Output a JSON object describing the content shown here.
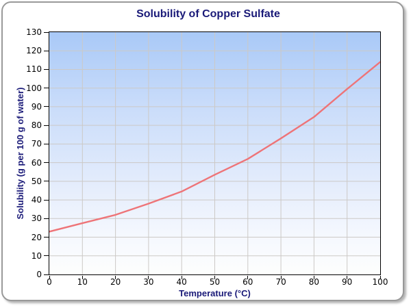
{
  "chart_data": {
    "type": "line",
    "title": "Solubility of Copper Sulfate",
    "xlabel": "Temperature (°C)",
    "ylabel": "Solubility (g per 100 g of water)",
    "x": [
      0,
      10,
      20,
      30,
      40,
      50,
      60,
      70,
      80,
      90,
      100
    ],
    "values": [
      23,
      27.5,
      32,
      38,
      44.5,
      53.5,
      62,
      73,
      84.5,
      99.5,
      114
    ],
    "xlim": [
      0,
      100
    ],
    "ylim": [
      0,
      130
    ],
    "x_ticks": [
      0,
      10,
      20,
      30,
      40,
      50,
      60,
      70,
      80,
      90,
      100
    ],
    "y_ticks": [
      0,
      10,
      20,
      30,
      40,
      50,
      60,
      70,
      80,
      90,
      100,
      110,
      120,
      130
    ],
    "grid": true,
    "legend_position": "none",
    "colors": {
      "line": "#ee7478",
      "title": "#1a1a78",
      "axis_titles": "#1a1a78",
      "tick_labels": "#000000",
      "grid": "#ccc9c6",
      "plot_border": "#000000",
      "card_border": "#999999",
      "plot_bg_stops": [
        [
          "0%",
          "#a9c9f7"
        ],
        [
          "30%",
          "#c9dcfa"
        ],
        [
          "64%",
          "#e5edfc"
        ],
        [
          "84%",
          "#f5f8fe"
        ],
        [
          "100%",
          "#fdfefd"
        ]
      ]
    }
  }
}
